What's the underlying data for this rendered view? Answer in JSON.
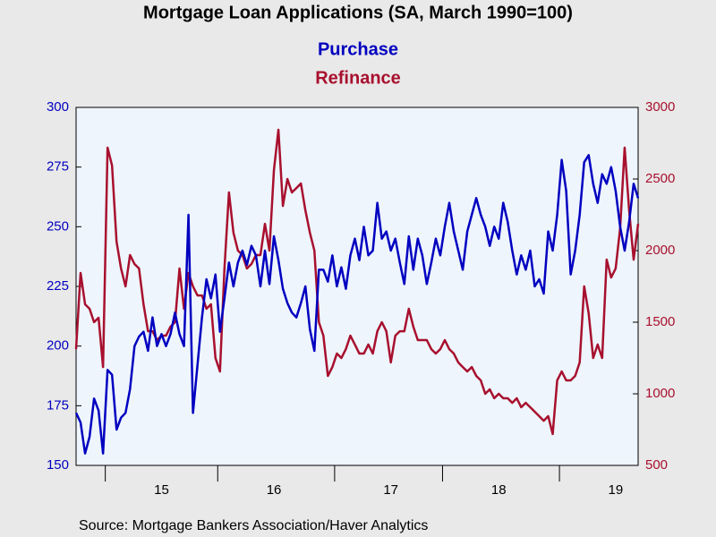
{
  "chart_data": {
    "type": "line",
    "title": "Mortgage Loan Applications (SA, March 1990=100)",
    "source": "Source:  Mortgage Bankers Association/Haver Analytics",
    "categories": [
      null,
      null,
      null,
      null,
      null,
      null,
      null,
      null,
      null,
      null,
      null,
      null,
      null,
      null,
      null,
      null,
      null,
      null,
      null,
      "15",
      null,
      null,
      null,
      null,
      null,
      null,
      null,
      null,
      null,
      null,
      null,
      null,
      null,
      null,
      null,
      null,
      null,
      null,
      null,
      null,
      null,
      null,
      null,
      null,
      "16",
      null,
      null,
      null,
      null,
      null,
      null,
      null,
      null,
      null,
      null,
      null,
      null,
      null,
      null,
      null,
      null,
      null,
      null,
      null,
      null,
      null,
      null,
      null,
      null,
      null,
      "17",
      null,
      null,
      null,
      null,
      null,
      null,
      null,
      null,
      null,
      null,
      null,
      null,
      null,
      null,
      null,
      null,
      null,
      null,
      null,
      null,
      null,
      null,
      null,
      "18",
      null,
      null,
      null,
      null,
      null,
      null,
      null,
      null,
      null,
      null,
      null,
      null,
      null,
      null,
      null,
      null,
      null,
      null,
      null,
      null,
      null,
      null,
      null,
      null,
      null,
      "19",
      null,
      null,
      null,
      null,
      null
    ],
    "series": [
      {
        "name": "Purchase",
        "color": "#0000c0",
        "axis": "y",
        "values": [
          172,
          168,
          155,
          162,
          178,
          173,
          155,
          190,
          188,
          165,
          170,
          172,
          182,
          200,
          204,
          206,
          198,
          212,
          200,
          205,
          200,
          205,
          214,
          205,
          200,
          255,
          172,
          192,
          212,
          228,
          220,
          230,
          206,
          220,
          235,
          225,
          235,
          240,
          234,
          242,
          238,
          225,
          240,
          226,
          246,
          236,
          224,
          218,
          214,
          212,
          218,
          225,
          207,
          198,
          232,
          232,
          227,
          238,
          225,
          233,
          224,
          238,
          245,
          236,
          250,
          238,
          240,
          260,
          245,
          248,
          240,
          245,
          235,
          226,
          246,
          232,
          245,
          238,
          226,
          235,
          245,
          238,
          250,
          260,
          248,
          240,
          232,
          248,
          255,
          262,
          255,
          250,
          242,
          250,
          245,
          260,
          252,
          240,
          230,
          238,
          232,
          240,
          225,
          228,
          222,
          248,
          240,
          255,
          278,
          265,
          230,
          240,
          255,
          277,
          280,
          268,
          260,
          272,
          268,
          275,
          265,
          250,
          240,
          252,
          268,
          262
        ]
      },
      {
        "name": "Refinance",
        "color": "#a8102e",
        "axis": "y2",
        "values": [
          1312,
          1844,
          1625,
          1594,
          1500,
          1531,
          1187,
          2719,
          2594,
          2062,
          1875,
          1750,
          1969,
          1906,
          1875,
          1625,
          1437,
          1437,
          1375,
          1406,
          1406,
          1469,
          1500,
          1875,
          1594,
          1844,
          1750,
          1687,
          1687,
          1594,
          1625,
          1250,
          1156,
          1875,
          2406,
          2125,
          2000,
          1969,
          1875,
          1906,
          1969,
          1969,
          2187,
          2000,
          2562,
          2844,
          2312,
          2500,
          2406,
          2437,
          2469,
          2281,
          2125,
          2000,
          1500,
          1406,
          1125,
          1187,
          1281,
          1250,
          1312,
          1406,
          1344,
          1281,
          1281,
          1344,
          1281,
          1437,
          1500,
          1437,
          1219,
          1406,
          1437,
          1437,
          1594,
          1469,
          1375,
          1375,
          1375,
          1312,
          1281,
          1312,
          1375,
          1312,
          1281,
          1219,
          1187,
          1156,
          1187,
          1125,
          1094,
          1000,
          1031,
          969,
          1000,
          969,
          969,
          937,
          969,
          906,
          937,
          906,
          875,
          844,
          812,
          844,
          719,
          1094,
          1156,
          1094,
          1094,
          1125,
          1219,
          1750,
          1562,
          1250,
          1344,
          1250,
          1937,
          1812,
          1875,
          2156,
          2719,
          2281,
          1937,
          2187
        ]
      }
    ],
    "ylim": [
      150,
      300
    ],
    "yticks": [
      150,
      175,
      200,
      225,
      250,
      275,
      300
    ],
    "y2lim": [
      500,
      3000
    ],
    "y2ticks": [
      500,
      1000,
      1500,
      2000,
      2500,
      3000
    ]
  }
}
